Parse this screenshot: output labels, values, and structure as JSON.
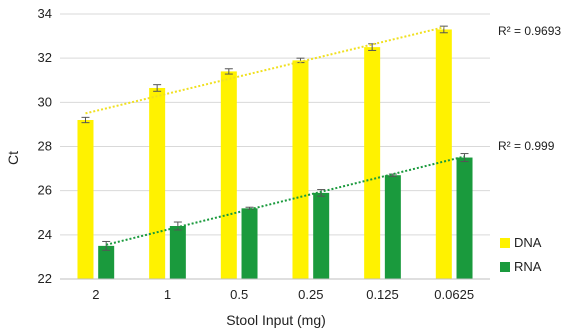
{
  "chart_data": {
    "type": "bar",
    "xlabel": "Stool Input (mg)",
    "ylabel": "Ct",
    "ylim": [
      22,
      34
    ],
    "yticks": [
      22,
      24,
      26,
      28,
      30,
      32,
      34
    ],
    "categories": [
      "2",
      "1",
      "0.5",
      "0.25",
      "0.125",
      "0.0625"
    ],
    "series": [
      {
        "name": "DNA",
        "color": "#FFF200",
        "values": [
          29.2,
          30.65,
          31.4,
          31.9,
          32.5,
          33.3
        ],
        "errors": [
          0.12,
          0.15,
          0.12,
          0.1,
          0.15,
          0.15
        ],
        "trendline": {
          "style": "dotted",
          "color": "#F0E020",
          "from": 29.5,
          "to": 33.4,
          "r2_label": "R² = 0.9693"
        }
      },
      {
        "name": "RNA",
        "color": "#1A9A3D",
        "values": [
          23.5,
          24.4,
          25.2,
          25.9,
          26.7,
          27.5
        ],
        "errors": [
          0.2,
          0.18,
          0.05,
          0.15,
          0.05,
          0.18
        ],
        "trendline": {
          "style": "dotted",
          "color": "#1A9A3D",
          "from": 23.55,
          "to": 27.55,
          "r2_label": "R² = 0.999"
        }
      }
    ],
    "grid": true,
    "legend": "bottom-right"
  }
}
